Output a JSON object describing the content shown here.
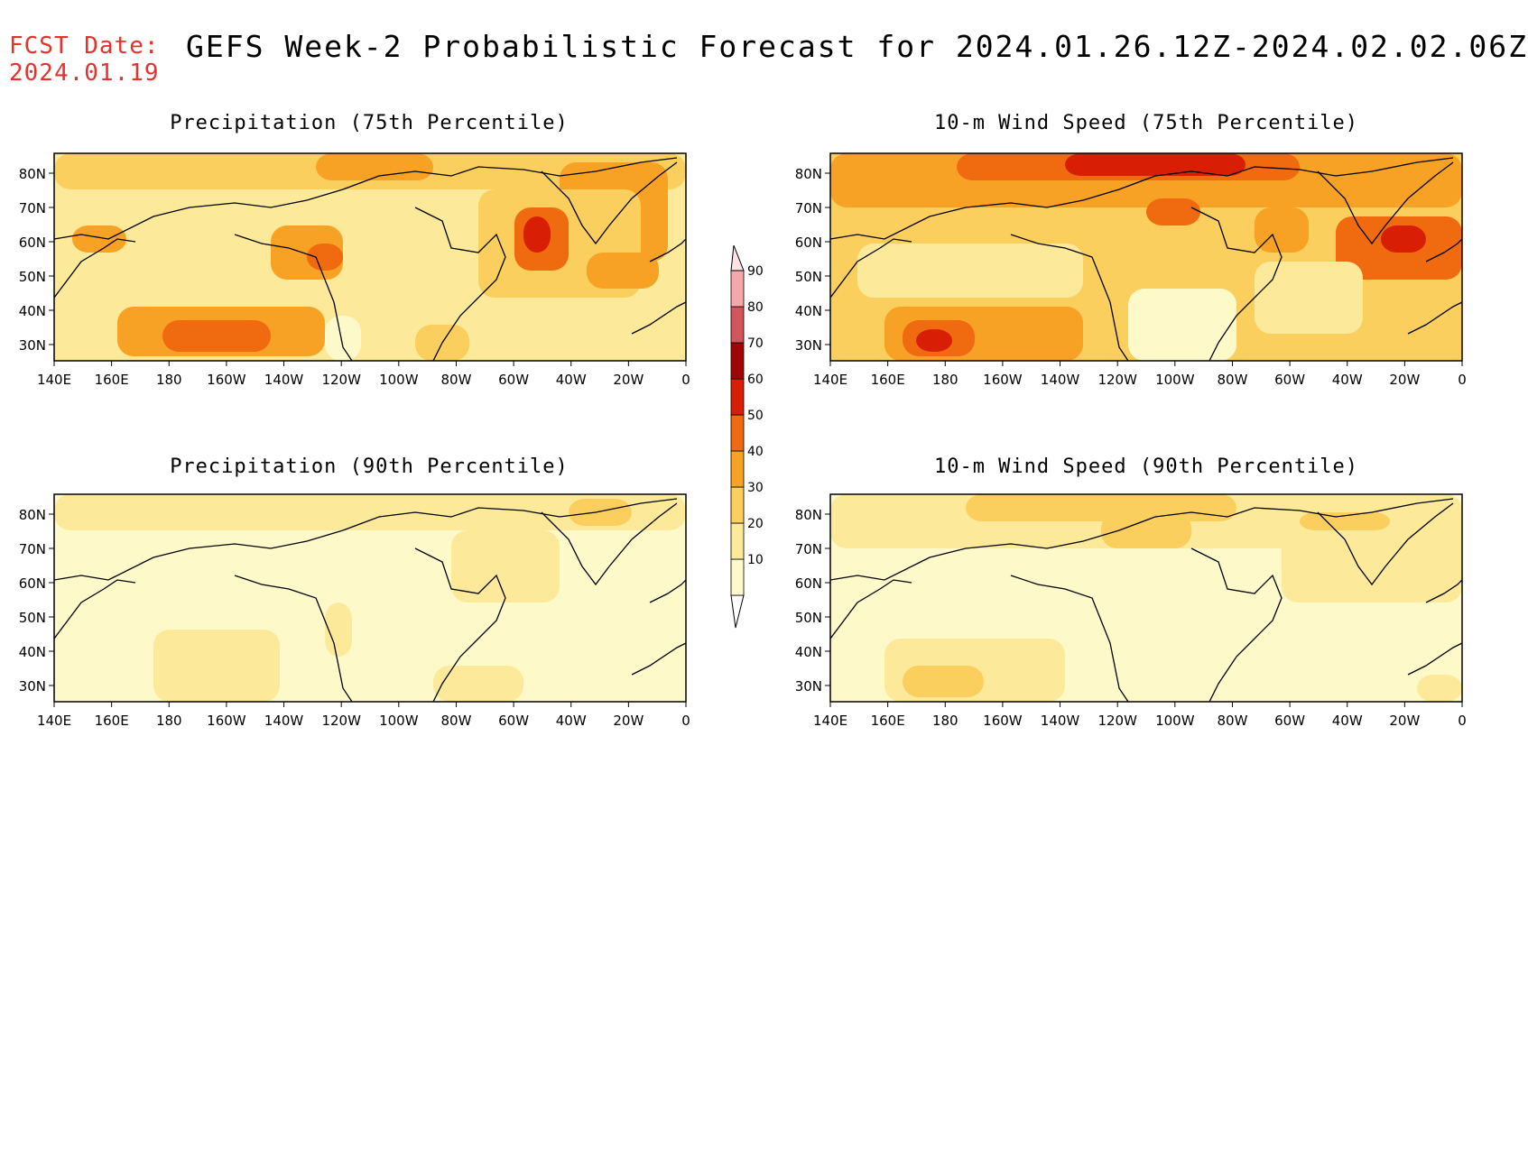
{
  "forecast_date": {
    "label": "FCST Date:",
    "value": "2024.01.19"
  },
  "main_title": "GEFS Week-2 Probabilistic Forecast for 2024.01.26.12Z-2024.02.02.06Z",
  "colors": {
    "c10": "#fef9c8",
    "c20": "#fce99a",
    "c30": "#fbcf5e",
    "c40": "#f8a225",
    "c50": "#f06a10",
    "c60": "#d81e05",
    "c70": "#a00503",
    "c80": "#d2555b",
    "c90": "#f5a8aa"
  },
  "colorbar": {
    "ticks": [
      "10",
      "20",
      "30",
      "40",
      "50",
      "60",
      "70",
      "80",
      "90"
    ]
  },
  "axes": {
    "lon_labels": [
      "140E",
      "160E",
      "180",
      "160W",
      "140W",
      "120W",
      "100W",
      "80W",
      "60W",
      "40W",
      "20W",
      "0"
    ],
    "lat_labels": [
      "80N",
      "70N",
      "60N",
      "50N",
      "40N",
      "30N"
    ]
  },
  "panels": [
    {
      "id": "precip75",
      "title": "Precipitation (75th Percentile)",
      "base": "c20"
    },
    {
      "id": "wind75",
      "title": "10-m Wind Speed (75th Percentile)",
      "base": "c30"
    },
    {
      "id": "precip90",
      "title": "Precipitation (90th Percentile)",
      "base": "c10"
    },
    {
      "id": "wind90",
      "title": "10-m Wind Speed (90th Percentile)",
      "base": "c10"
    }
  ]
}
